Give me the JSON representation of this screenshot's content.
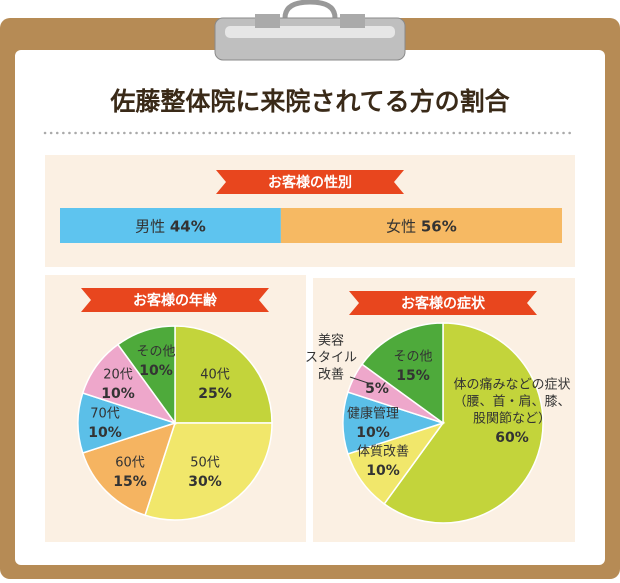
{
  "title": "佐藤整体院に来院されてる方の割合",
  "chart_data": [
    {
      "type": "stacked-bar",
      "title": "お客様の性別",
      "categories": [
        "男性",
        "女性"
      ],
      "values": [
        44,
        56
      ],
      "value_labels": [
        "44%",
        "56%"
      ],
      "colors": [
        "#5ec4ef",
        "#f6b963"
      ]
    },
    {
      "type": "pie",
      "title": "お客様の年齢",
      "categories": [
        [
          "40代"
        ],
        [
          "50代"
        ],
        [
          "60代"
        ],
        [
          "70代"
        ],
        [
          "20代"
        ],
        [
          "その他"
        ]
      ],
      "values": [
        25,
        30,
        15,
        10,
        10,
        10
      ],
      "value_labels": [
        "25%",
        "30%",
        "15%",
        "10%",
        "10%",
        "10%"
      ],
      "colors": [
        "#c3d43b",
        "#f1e76b",
        "#f5b461",
        "#5bbfe8",
        "#eea7cb",
        "#4eaa3b"
      ]
    },
    {
      "type": "pie",
      "title": "お客様の症状",
      "categories": [
        [
          "体の痛みなどの症状",
          "（腰、首・肩、膝、",
          "股関節など）"
        ],
        [
          "体質改善"
        ],
        [
          "健康管理"
        ],
        [
          "美容",
          "スタイル",
          "改善"
        ],
        [
          "その他"
        ]
      ],
      "values": [
        60,
        10,
        10,
        5,
        15
      ],
      "value_labels": [
        "60%",
        "10%",
        "10%",
        "5%",
        "15%"
      ],
      "colors": [
        "#c3d43b",
        "#f1e76b",
        "#5bbfe8",
        "#eea7cb",
        "#4eaa3b"
      ]
    }
  ]
}
